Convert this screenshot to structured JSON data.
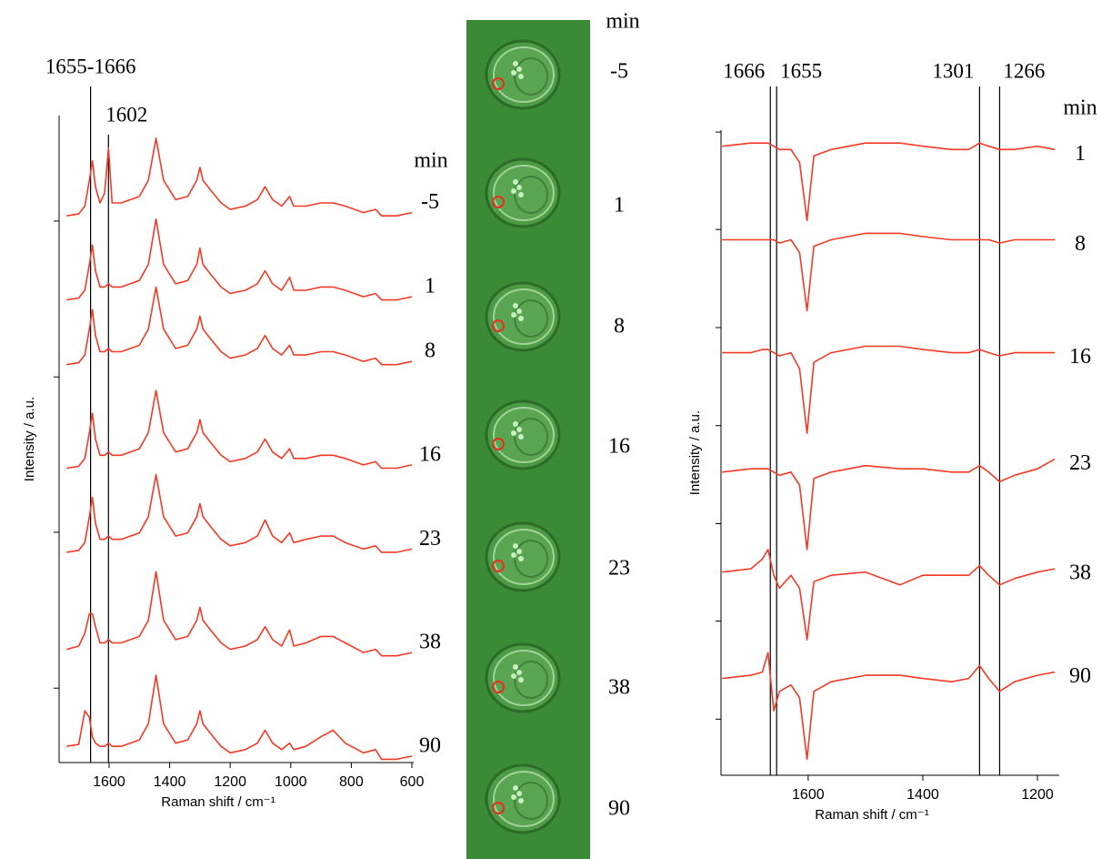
{
  "chart_data": [
    {
      "type": "line",
      "x_label": "Raman shift / cm⁻¹",
      "y_label": "Intensity / a.u.",
      "legend_title": "min",
      "xlim": [
        1765,
        594
      ],
      "ylim": [
        0,
        100
      ],
      "xticks": [
        1600,
        1400,
        1200,
        1000,
        800,
        600
      ],
      "yticks": [
        11.5,
        35.6,
        59.6,
        83.7
      ],
      "reference_lines": [
        {
          "value": 1661,
          "label": "1655-1666"
        },
        1602
      ],
      "x": [
        1740,
        1700,
        1680,
        1665,
        1655,
        1645,
        1630,
        1615,
        1602,
        1590,
        1560,
        1500,
        1470,
        1445,
        1420,
        1380,
        1340,
        1310,
        1300,
        1290,
        1265,
        1230,
        1200,
        1150,
        1110,
        1085,
        1060,
        1030,
        1004,
        990,
        950,
        900,
        860,
        820,
        760,
        720,
        700,
        650,
        600
      ],
      "series": [
        {
          "name": "-5",
          "color": "#f23a25",
          "values": [
            84.5,
            84.8,
            86,
            90,
            93,
            89,
            86.5,
            88,
            95,
            86.5,
            86.5,
            87.5,
            90,
            96.5,
            90,
            87,
            87.5,
            90,
            92,
            90,
            88.5,
            86.5,
            85.5,
            86,
            87,
            89,
            87,
            86,
            87.5,
            86,
            86,
            86.5,
            86.5,
            86,
            85,
            85.5,
            84.5,
            84.5,
            85
          ]
        },
        {
          "name": "1",
          "color": "#f23a25",
          "values": [
            71.5,
            71.8,
            73,
            77,
            80,
            76,
            73.5,
            73.5,
            74,
            73.5,
            73.5,
            74.5,
            77,
            84,
            77,
            74,
            74.5,
            77,
            79.5,
            77,
            75.5,
            73.5,
            72.5,
            73,
            74,
            76,
            74,
            73,
            75,
            73,
            73,
            73.5,
            73.5,
            73,
            72,
            72.5,
            71.5,
            71.5,
            72
          ]
        },
        {
          "name": "8",
          "color": "#f23a25",
          "values": [
            61.5,
            61.8,
            63,
            67,
            70,
            66,
            63.5,
            63.5,
            64,
            63.5,
            63.5,
            64.5,
            67,
            73.5,
            67,
            64,
            64.5,
            67,
            69,
            67,
            65.5,
            63.5,
            62.5,
            63,
            64,
            66,
            64,
            63,
            64.5,
            63,
            63,
            63.5,
            63.5,
            63,
            62,
            62.5,
            61.5,
            61.5,
            62
          ]
        },
        {
          "name": "16",
          "color": "#f23a25",
          "values": [
            45.5,
            45.8,
            47,
            51,
            54,
            50,
            47.5,
            47.5,
            48,
            47.5,
            47.5,
            48.5,
            51,
            57.5,
            51,
            48,
            48.5,
            51,
            53,
            51,
            49.5,
            47.5,
            46.5,
            47,
            48,
            50,
            48,
            47,
            48.5,
            47,
            47,
            47.5,
            47.5,
            47,
            46,
            46.5,
            45.5,
            45.5,
            46
          ]
        },
        {
          "name": "23",
          "color": "#f23a25",
          "values": [
            32.5,
            32.8,
            34,
            38,
            41,
            37,
            34.5,
            34.5,
            35,
            34.5,
            34.5,
            35.5,
            38,
            44.5,
            38,
            35,
            35.5,
            38,
            40,
            38,
            36.5,
            34.5,
            33.5,
            34,
            35,
            37.5,
            35,
            34,
            35.5,
            34,
            34.5,
            35,
            35,
            34,
            33,
            33.5,
            32.5,
            32.5,
            33
          ]
        },
        {
          "name": "38",
          "color": "#f23a25",
          "values": [
            17.5,
            18,
            20,
            23,
            23,
            21,
            18.5,
            18.5,
            19,
            18.5,
            18.5,
            19.5,
            22,
            29.5,
            22,
            19,
            19.5,
            22,
            24,
            22,
            20.5,
            18.5,
            17.5,
            18,
            19,
            21,
            19,
            18,
            20.5,
            18,
            18.5,
            19.5,
            19.5,
            18.5,
            17,
            17.5,
            16.5,
            16.5,
            17
          ]
        },
        {
          "name": "90",
          "color": "#f23a25",
          "values": [
            2.5,
            2.8,
            8,
            7,
            4,
            3,
            2.5,
            2.5,
            3,
            2.5,
            2.5,
            3.5,
            6,
            13.5,
            6,
            3,
            3.5,
            6,
            8,
            6,
            4.5,
            2.5,
            1.5,
            2,
            3,
            5,
            3,
            2,
            3,
            2,
            2.5,
            4,
            5,
            3,
            1.5,
            2,
            0.5,
            0.5,
            1
          ]
        }
      ]
    },
    {
      "type": "line",
      "x_label": "Raman shift / cm⁻¹",
      "y_label": "Intensity / a.u.",
      "legend_title": "min",
      "xlim": [
        1752,
        1162
      ],
      "ylim": [
        0,
        100
      ],
      "xticks": [
        1600,
        1400,
        1200
      ],
      "yticks": [
        8.7,
        23.9,
        39,
        54.2,
        69.4,
        84.6,
        99.7
      ],
      "reference_lines": [
        1666,
        1655,
        1301,
        1266
      ],
      "x": [
        1750,
        1700,
        1680,
        1670,
        1660,
        1650,
        1630,
        1615,
        1602,
        1590,
        1560,
        1500,
        1440,
        1400,
        1350,
        1320,
        1301,
        1285,
        1266,
        1240,
        1200,
        1170
      ],
      "series": [
        {
          "name": "1",
          "color": "#f23a25",
          "values": [
            97.5,
            98,
            98,
            98,
            97.5,
            97,
            97,
            95,
            86,
            96,
            97,
            98,
            98,
            97.5,
            97,
            97,
            98,
            97.5,
            97,
            97,
            97.5,
            97
          ]
        },
        {
          "name": "8",
          "color": "#f23a25",
          "values": [
            83,
            83,
            83,
            83,
            83,
            82.5,
            83,
            81,
            72,
            82,
            83,
            84,
            84,
            83.5,
            83,
            83,
            83,
            83,
            82.5,
            83,
            83,
            83
          ]
        },
        {
          "name": "16",
          "color": "#f23a25",
          "values": [
            65.5,
            65.5,
            66,
            66,
            65.5,
            65,
            65.5,
            63,
            53,
            64,
            65.5,
            66.5,
            66.5,
            66,
            65.5,
            65.5,
            66,
            65.5,
            65,
            65.5,
            65.5,
            65.5
          ]
        },
        {
          "name": "23",
          "color": "#f23a25",
          "values": [
            47,
            47.5,
            47.5,
            47.5,
            47,
            46.5,
            47,
            45,
            35,
            46,
            47,
            48,
            47.5,
            47.5,
            47,
            47,
            48,
            47,
            45.5,
            46.5,
            47.5,
            49
          ]
        },
        {
          "name": "38",
          "color": "#f23a25",
          "values": [
            31.5,
            32,
            33.5,
            35,
            31,
            29,
            31,
            29,
            21,
            30,
            31,
            31.5,
            29.5,
            31,
            31,
            31,
            32.5,
            31,
            29.5,
            30.5,
            31.5,
            32
          ]
        },
        {
          "name": "90",
          "color": "#f23a25",
          "values": [
            15,
            15.5,
            16,
            19,
            10,
            13,
            14,
            12,
            2.5,
            13,
            14.5,
            15.5,
            15.5,
            15,
            14.5,
            15,
            17,
            15,
            13,
            14.5,
            15.5,
            16
          ]
        }
      ]
    }
  ],
  "image_strip": {
    "header": "min",
    "labels": [
      "-5",
      "1",
      "8",
      "16",
      "23",
      "38",
      "90"
    ]
  }
}
